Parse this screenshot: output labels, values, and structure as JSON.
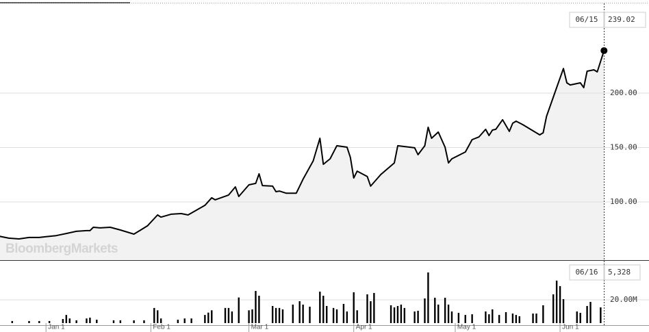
{
  "chart_data": [
    {
      "type": "line",
      "watermark": "BloombergMarkets",
      "last_date": "06/15",
      "series": [
        {
          "color": "#000000",
          "x": [
            -14,
            -11,
            -8,
            -5,
            -2,
            0,
            3,
            6,
            9,
            12,
            13,
            14,
            16,
            19,
            22,
            26,
            28,
            30,
            33,
            34,
            37,
            40,
            42,
            47,
            49,
            50,
            54,
            56,
            57,
            60,
            62,
            63,
            64,
            67,
            68,
            69,
            71,
            74,
            76,
            79,
            81,
            82,
            84,
            86,
            89,
            90,
            91,
            92,
            95,
            96,
            99,
            103,
            104,
            109,
            110,
            112,
            113,
            114,
            116,
            118,
            119,
            120,
            124,
            126,
            128,
            130,
            131,
            132,
            133,
            135,
            137,
            138,
            139,
            141,
            146,
            147,
            148,
            151,
            153,
            154,
            155,
            158,
            159,
            160,
            162,
            163,
            165
          ],
          "values": [
            68.6,
            66.7,
            66,
            67.3,
            67.3,
            68,
            69,
            71,
            73,
            73.6,
            73.6,
            76.7,
            76.1,
            76.7,
            74.2,
            70.4,
            74.2,
            78,
            88,
            86,
            88.7,
            89.3,
            88,
            96.9,
            103.8,
            101.9,
            106.3,
            113.8,
            105,
            115.7,
            117,
            125.8,
            115,
            114.5,
            109.4,
            110,
            108,
            108,
            120.8,
            137.7,
            158.5,
            134.6,
            139.6,
            151.6,
            150.3,
            140.9,
            122,
            128.3,
            123.3,
            114.5,
            125.2,
            135.8,
            151.6,
            149.7,
            143.4,
            151.6,
            168.6,
            158.5,
            164.2,
            150.3,
            135.8,
            139.6,
            145.9,
            157.2,
            159.7,
            166.7,
            161,
            166,
            166.7,
            175.5,
            164.8,
            172.3,
            174.2,
            171,
            161.6,
            163.5,
            178.6,
            205,
            222.6,
            209.4,
            207.5,
            209.4,
            205,
            220.1,
            221.4,
            219.5,
            239.02
          ]
        }
      ],
      "xlim": [
        -13.6,
        178.3
      ],
      "ylim": [
        46.5,
        282.4
      ],
      "yticks": [
        {
          "value": 100,
          "label": "100.00"
        },
        {
          "value": 150,
          "label": "150.00"
        },
        {
          "value": 200,
          "label": "200.00"
        }
      ],
      "grid": true
    },
    {
      "type": "bar",
      "last_date": "06/16",
      "last_volume_label": "5,328",
      "color": "#000000",
      "x": [
        -14,
        -10,
        -5,
        -2,
        1,
        5,
        6,
        7,
        9,
        12,
        13,
        15,
        20,
        22,
        26,
        29,
        32,
        33,
        34,
        39,
        41,
        43,
        47,
        48,
        49,
        53,
        54,
        55,
        57,
        60,
        61,
        62,
        63,
        67,
        68,
        69,
        70,
        73,
        75,
        76,
        78,
        81,
        82,
        83,
        85,
        86,
        88,
        89,
        91,
        92,
        95,
        96,
        97,
        102,
        103,
        104,
        105,
        106,
        109,
        110,
        112,
        113,
        115,
        116,
        118,
        119,
        120,
        122,
        124,
        126,
        130,
        131,
        132,
        134,
        136,
        138,
        139,
        140,
        144,
        145,
        147,
        150,
        151,
        152,
        153,
        157,
        158,
        160,
        161,
        164
      ],
      "values": [
        1.8,
        1.8,
        1.8,
        1.8,
        1.8,
        3.5,
        7,
        4,
        2.4,
        4,
        4.7,
        2.9,
        2.4,
        2.4,
        2.4,
        2.4,
        13,
        11,
        4,
        2.9,
        4,
        4,
        7,
        9,
        11,
        13,
        13,
        10,
        22,
        11,
        11.8,
        27.6,
        23.5,
        14.7,
        13,
        13,
        11.8,
        15.9,
        18.8,
        15.9,
        14.1,
        27,
        23.5,
        14.7,
        13,
        11.8,
        16.5,
        10,
        26.5,
        11,
        24.7,
        18.8,
        25.9,
        15.3,
        13.5,
        14.7,
        15.9,
        13,
        10,
        10.6,
        21.2,
        43.5,
        21.8,
        15.9,
        21.8,
        15.9,
        10,
        8.8,
        7,
        7.6,
        10,
        7.6,
        11.8,
        7,
        9.4,
        8.2,
        7,
        5.9,
        8.2,
        8.2,
        15.3,
        24.7,
        36.5,
        31.8,
        20.6,
        10,
        8.8,
        14.7,
        18.2,
        13.5
      ],
      "xlim": [
        -13.6,
        178.3
      ],
      "ylim": [
        0,
        53.5
      ],
      "xticks": [
        {
          "value": 0,
          "label": "Jan 1"
        },
        {
          "value": 31,
          "label": "Feb 1"
        },
        {
          "value": 60,
          "label": "Mar 1"
        },
        {
          "value": 91,
          "label": "Apr 1"
        },
        {
          "value": 121,
          "label": "May 1"
        },
        {
          "value": 152,
          "label": "Jun 1"
        }
      ],
      "yticks": [
        {
          "value": 20,
          "label": "20.00M"
        }
      ],
      "grid": true
    }
  ]
}
